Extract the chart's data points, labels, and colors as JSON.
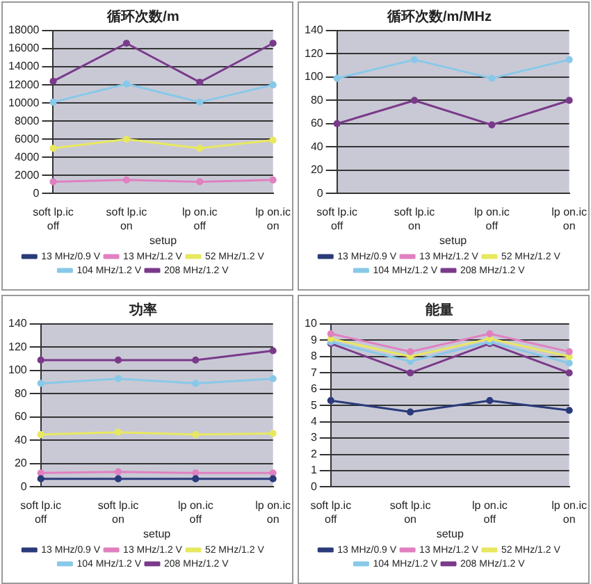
{
  "chart_data": [
    {
      "type": "line",
      "title": "循环次数/m",
      "xlabel": "setup",
      "categories": [
        "soft lp.ic off",
        "soft lp.ic on",
        "lp on.ic off",
        "lp on.ic on"
      ],
      "ylim": [
        0,
        18000
      ],
      "yticks": [
        0,
        2000,
        4000,
        6000,
        8000,
        10000,
        12000,
        14000,
        16000,
        18000
      ],
      "grid": "y",
      "legend": "bottom",
      "marker": "circle",
      "series": [
        {
          "name": "13 MHz/0.9 V",
          "color": "#2a3a7a",
          "values": [
            null,
            null,
            null,
            null
          ]
        },
        {
          "name": "13 MHz/1.2 V",
          "color": "#e080c0",
          "values": [
            1300,
            1500,
            1300,
            1500
          ]
        },
        {
          "name": "52 MHz/1.2 V",
          "color": "#e8e860",
          "values": [
            5000,
            6000,
            5000,
            5900
          ]
        },
        {
          "name": "104 MHz/1.2 V",
          "color": "#88c8e8",
          "values": [
            10100,
            12100,
            10100,
            12000
          ]
        },
        {
          "name": "208 MHz/1.2 V",
          "color": "#7a3a8a",
          "values": [
            12400,
            16600,
            12300,
            16600
          ]
        }
      ]
    },
    {
      "type": "line",
      "title": "循环次数/m/MHz",
      "xlabel": "setup",
      "categories": [
        "soft lp.ic off",
        "soft lp.ic on",
        "lp on.ic off",
        "lp on.ic on"
      ],
      "ylim": [
        0,
        140
      ],
      "yticks": [
        0,
        20,
        40,
        60,
        80,
        100,
        120,
        140
      ],
      "grid": "y",
      "legend": "bottom",
      "marker": "circle",
      "series": [
        {
          "name": "13 MHz/0.9 V",
          "color": "#2a3a7a",
          "values": [
            null,
            null,
            null,
            null
          ]
        },
        {
          "name": "13 MHz/1.2 V",
          "color": "#e080c0",
          "values": [
            null,
            null,
            null,
            null
          ]
        },
        {
          "name": "52 MHz/1.2 V",
          "color": "#e8e860",
          "values": [
            null,
            null,
            null,
            null
          ]
        },
        {
          "name": "104 MHz/1.2 V",
          "color": "#88c8e8",
          "values": [
            99,
            115,
            99,
            115
          ]
        },
        {
          "name": "208 MHz/1.2 V",
          "color": "#7a3a8a",
          "values": [
            60,
            80,
            59,
            80
          ]
        }
      ]
    },
    {
      "type": "line",
      "title": "功率",
      "xlabel": "setup",
      "categories": [
        "soft lp.ic off",
        "soft lp.ic on",
        "lp on.ic off",
        "lp on.ic on"
      ],
      "ylim": [
        0,
        140
      ],
      "yticks": [
        0,
        20,
        40,
        60,
        80,
        100,
        120,
        140
      ],
      "grid": "y",
      "legend": "bottom",
      "marker": "circle",
      "series": [
        {
          "name": "13 MHz/0.9 V",
          "color": "#2a3a7a",
          "values": [
            7,
            7,
            7,
            7
          ]
        },
        {
          "name": "13 MHz/1.2 V",
          "color": "#e080c0",
          "values": [
            12,
            13,
            12,
            12
          ]
        },
        {
          "name": "52 MHz/1.2 V",
          "color": "#e8e860",
          "values": [
            45,
            47,
            45,
            46
          ]
        },
        {
          "name": "104 MHz/1.2 V",
          "color": "#88c8e8",
          "values": [
            89,
            93,
            89,
            93
          ]
        },
        {
          "name": "208 MHz/1.2 V",
          "color": "#7a3a8a",
          "values": [
            109,
            109,
            109,
            117
          ]
        }
      ]
    },
    {
      "type": "line",
      "title": "能量",
      "xlabel": "setup",
      "categories": [
        "soft lp.ic off",
        "soft lp.ic on",
        "lp on.ic off",
        "lp on.ic on"
      ],
      "ylim": [
        0,
        10
      ],
      "yticks": [
        0,
        1,
        2,
        3,
        4,
        5,
        6,
        7,
        8,
        9,
        10
      ],
      "grid": "y",
      "legend": "bottom",
      "marker": "circle",
      "series": [
        {
          "name": "13 MHz/0.9 V",
          "color": "#2a3a7a",
          "values": [
            5.3,
            4.6,
            5.3,
            4.7
          ]
        },
        {
          "name": "13 MHz/1.2 V",
          "color": "#e080c0",
          "values": [
            9.4,
            8.3,
            9.4,
            8.3
          ]
        },
        {
          "name": "52 MHz/1.2 V",
          "color": "#e8e860",
          "values": [
            9.1,
            8.0,
            9.1,
            8.0
          ]
        },
        {
          "name": "104 MHz/1.2 V",
          "color": "#88c8e8",
          "values": [
            8.9,
            7.7,
            8.9,
            7.6
          ]
        },
        {
          "name": "208 MHz/1.2 V",
          "color": "#7a3a8a",
          "values": [
            8.8,
            7.0,
            8.8,
            7.0
          ]
        }
      ]
    }
  ]
}
